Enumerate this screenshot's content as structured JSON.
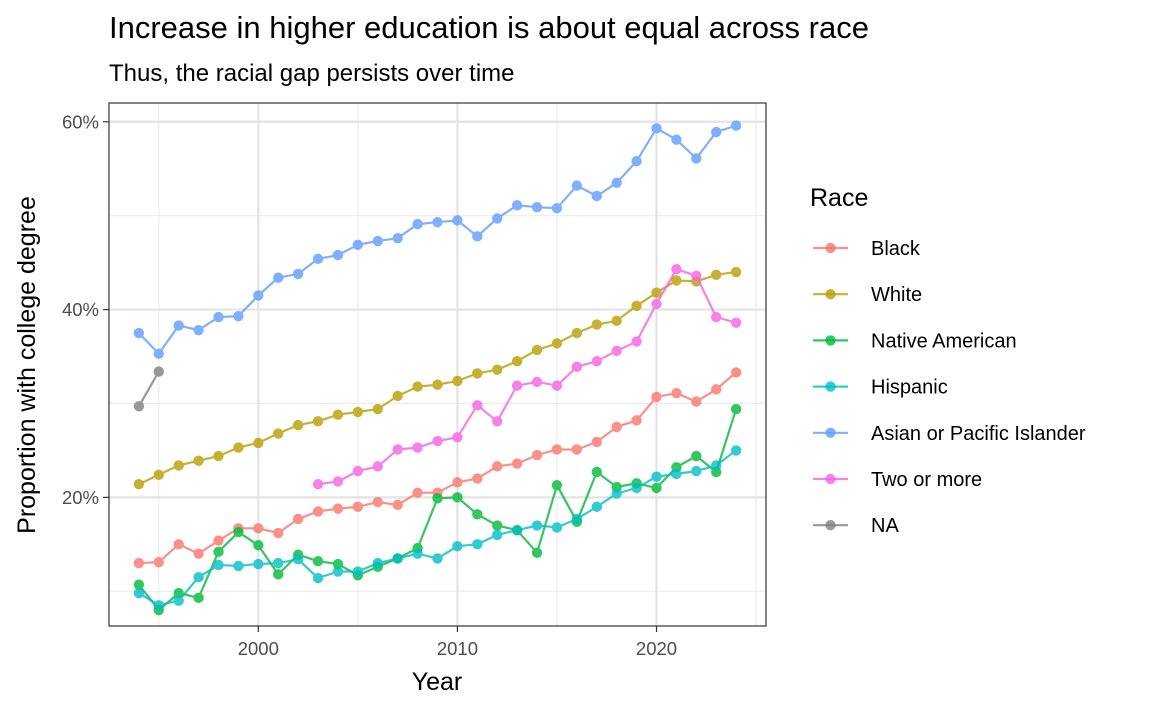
{
  "chart_data": {
    "type": "line",
    "title": "Increase in higher education is about equal across race",
    "subtitle": "Thus, the racial gap persists over time",
    "xlabel": "Year",
    "ylabel": "Proportion with college degree",
    "xlim": [
      1992.5,
      2025.5
    ],
    "ylim": [
      0.063,
      0.62
    ],
    "x_ticks": [
      2000,
      2010,
      2020
    ],
    "x_tick_labels": [
      "2000",
      "2010",
      "2020"
    ],
    "y_ticks": [
      0.2,
      0.4,
      0.6
    ],
    "y_tick_labels": [
      "20%",
      "40%",
      "60%"
    ],
    "grid": true,
    "legend": {
      "title": "Race",
      "position": "right"
    },
    "series": [
      {
        "name": "Black",
        "color": "#F8766D",
        "x": [
          1994,
          1995,
          1996,
          1997,
          1998,
          1999,
          2000,
          2001,
          2002,
          2003,
          2004,
          2005,
          2006,
          2007,
          2008,
          2009,
          2010,
          2011,
          2012,
          2013,
          2014,
          2015,
          2016,
          2017,
          2018,
          2019,
          2020,
          2021,
          2022,
          2023,
          2024
        ],
        "y": [
          0.13,
          0.131,
          0.15,
          0.14,
          0.154,
          0.167,
          0.167,
          0.162,
          0.177,
          0.185,
          0.188,
          0.19,
          0.195,
          0.192,
          0.205,
          0.205,
          0.216,
          0.22,
          0.233,
          0.236,
          0.245,
          0.251,
          0.251,
          0.259,
          0.275,
          0.282,
          0.307,
          0.311,
          0.302,
          0.315,
          0.333
        ]
      },
      {
        "name": "White",
        "color": "#B79F00",
        "x": [
          1994,
          1995,
          1996,
          1997,
          1998,
          1999,
          2000,
          2001,
          2002,
          2003,
          2004,
          2005,
          2006,
          2007,
          2008,
          2009,
          2010,
          2011,
          2012,
          2013,
          2014,
          2015,
          2016,
          2017,
          2018,
          2019,
          2020,
          2021,
          2022,
          2023,
          2024
        ],
        "y": [
          0.214,
          0.224,
          0.234,
          0.239,
          0.244,
          0.253,
          0.258,
          0.268,
          0.277,
          0.281,
          0.288,
          0.291,
          0.294,
          0.308,
          0.318,
          0.32,
          0.324,
          0.332,
          0.336,
          0.345,
          0.357,
          0.364,
          0.375,
          0.384,
          0.388,
          0.404,
          0.418,
          0.431,
          0.43,
          0.437,
          0.44
        ]
      },
      {
        "name": "Native American",
        "color": "#00BA38",
        "x": [
          1994,
          1995,
          1996,
          1997,
          1998,
          1999,
          2000,
          2001,
          2002,
          2003,
          2004,
          2005,
          2006,
          2007,
          2008,
          2009,
          2010,
          2011,
          2012,
          2013,
          2014,
          2015,
          2016,
          2017,
          2018,
          2019,
          2020,
          2021,
          2022,
          2023,
          2024
        ],
        "y": [
          0.107,
          0.08,
          0.098,
          0.093,
          0.142,
          0.163,
          0.149,
          0.118,
          0.139,
          0.132,
          0.129,
          0.117,
          0.126,
          0.135,
          0.146,
          0.199,
          0.2,
          0.182,
          0.17,
          0.165,
          0.141,
          0.213,
          0.174,
          0.227,
          0.211,
          0.215,
          0.21,
          0.232,
          0.244,
          0.227,
          0.294
        ]
      },
      {
        "name": "Hispanic",
        "color": "#00BFC4",
        "x": [
          1994,
          1995,
          1996,
          1997,
          1998,
          1999,
          2000,
          2001,
          2002,
          2003,
          2004,
          2005,
          2006,
          2007,
          2008,
          2009,
          2010,
          2011,
          2012,
          2013,
          2014,
          2015,
          2016,
          2017,
          2018,
          2019,
          2020,
          2021,
          2022,
          2023,
          2024
        ],
        "y": [
          0.098,
          0.085,
          0.09,
          0.115,
          0.128,
          0.127,
          0.129,
          0.13,
          0.134,
          0.114,
          0.121,
          0.121,
          0.13,
          0.135,
          0.14,
          0.135,
          0.148,
          0.15,
          0.16,
          0.165,
          0.17,
          0.168,
          0.177,
          0.19,
          0.204,
          0.21,
          0.222,
          0.225,
          0.228,
          0.234,
          0.25
        ]
      },
      {
        "name": "Asian or Pacific Islander",
        "color": "#619CFF",
        "x": [
          1994,
          1995,
          1996,
          1997,
          1998,
          1999,
          2000,
          2001,
          2002,
          2003,
          2004,
          2005,
          2006,
          2007,
          2008,
          2009,
          2010,
          2011,
          2012,
          2013,
          2014,
          2015,
          2016,
          2017,
          2018,
          2019,
          2020,
          2021,
          2022,
          2023,
          2024
        ],
        "y": [
          0.375,
          0.353,
          0.383,
          0.378,
          0.392,
          0.393,
          0.415,
          0.434,
          0.438,
          0.454,
          0.458,
          0.469,
          0.473,
          0.476,
          0.491,
          0.493,
          0.495,
          0.478,
          0.497,
          0.511,
          0.509,
          0.508,
          0.532,
          0.521,
          0.535,
          0.558,
          0.593,
          0.581,
          0.561,
          0.589,
          0.596
        ]
      },
      {
        "name": "Two or more",
        "color": "#F564E3",
        "x": [
          2003,
          2004,
          2005,
          2006,
          2007,
          2008,
          2009,
          2010,
          2011,
          2012,
          2013,
          2014,
          2015,
          2016,
          2017,
          2018,
          2019,
          2020,
          2021,
          2022,
          2023,
          2024
        ],
        "y": [
          0.214,
          0.217,
          0.228,
          0.233,
          0.251,
          0.253,
          0.26,
          0.264,
          0.298,
          0.281,
          0.319,
          0.323,
          0.319,
          0.339,
          0.345,
          0.356,
          0.366,
          0.406,
          0.443,
          0.436,
          0.392,
          0.386
        ]
      },
      {
        "name": "NA",
        "color": "#7F7F7F",
        "x": [
          1994,
          1995
        ],
        "y": [
          0.297,
          0.334
        ]
      }
    ]
  }
}
